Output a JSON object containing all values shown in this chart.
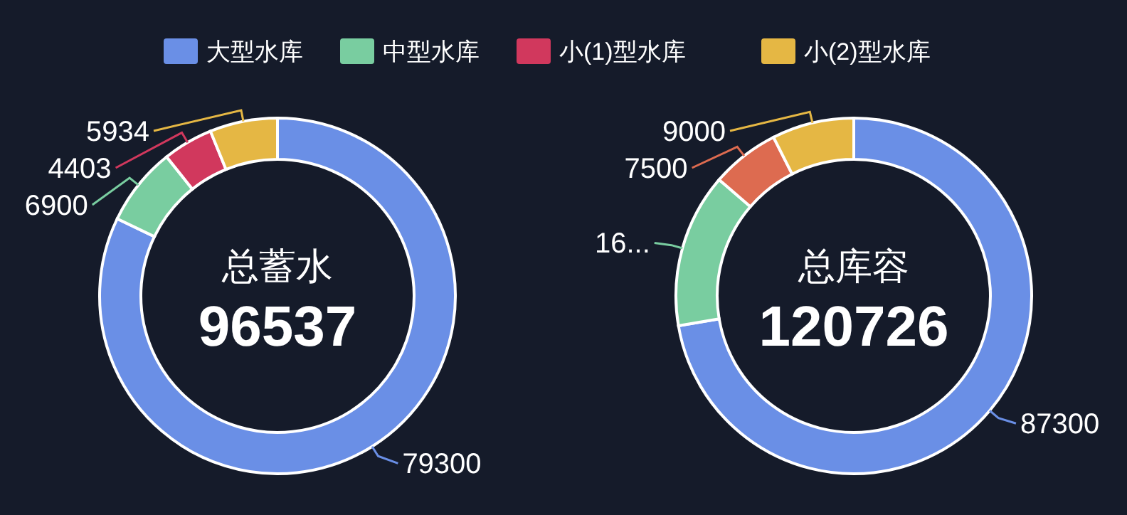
{
  "chart_data": [
    {
      "type": "donut",
      "title": "总蓄水",
      "annotations": [
        "96537"
      ],
      "categories": [
        "大型水库",
        "中型水库",
        "小(1)型水库",
        "小(2)型水库"
      ],
      "values": [
        79300,
        6900,
        4403,
        5934
      ],
      "colors": [
        "#6a8fe6",
        "#79cda0",
        "#d1385d",
        "#e5b744"
      ],
      "data_labels": true,
      "legend": "top"
    },
    {
      "type": "donut",
      "title": "总库容",
      "annotations": [
        "120726"
      ],
      "categories": [
        null,
        null,
        null,
        null
      ],
      "values": [
        87300,
        16926,
        7500,
        9000
      ],
      "value_labels": [
        "87300",
        "16...",
        "7500",
        "9000"
      ],
      "colors": [
        "#6a8fe6",
        "#79cda0",
        "#dd6b50",
        "#e5b744"
      ]
    }
  ]
}
